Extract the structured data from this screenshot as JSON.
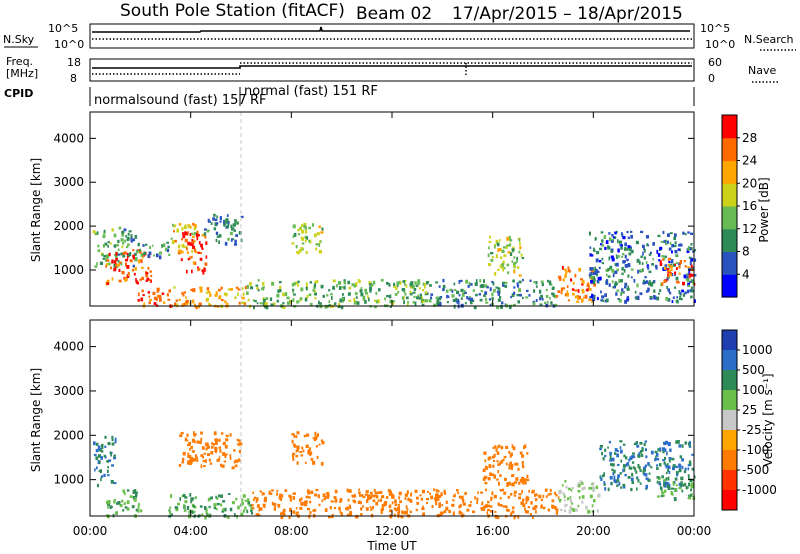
{
  "header": {
    "station": "South Pole Station (fitACF)",
    "beam": "Beam 02",
    "dates": "17/Apr/2015 – 18/Apr/2015"
  },
  "noise_panel": {
    "left_label": "N.Sky",
    "left_ticks": [
      "10^5",
      "10^0"
    ],
    "right_ticks": [
      "10^5",
      "10^0"
    ],
    "right_label": "N.Search"
  },
  "freq_panel": {
    "left_label_1": "Freq.",
    "left_label_2": "[MHz]",
    "left_ticks": [
      "18",
      "8"
    ],
    "right_ticks": [
      "60",
      "0"
    ],
    "right_label": "Nave"
  },
  "cpid": {
    "label": "CPID",
    "seg1": "normalsound (fast) 157",
    "seg1_rf": "RF",
    "seg2": "normal (fast) 151 RF"
  },
  "x_axis": {
    "title": "Time UT",
    "ticks": [
      "00:00",
      "04:00",
      "08:00",
      "12:00",
      "16:00",
      "20:00",
      "00:00"
    ]
  },
  "power_colorbar": {
    "label": "Power [dB]",
    "ticks": [
      "28",
      "24",
      "20",
      "16",
      "12",
      "8",
      "4"
    ],
    "colors": [
      "#0000ff",
      "#2a52be",
      "#2e8b57",
      "#66bb55",
      "#ccd21a",
      "#ffa500",
      "#ff6a00",
      "#ff0000"
    ]
  },
  "velocity_colorbar": {
    "label": "Velocity [m s⁻¹]",
    "ticks": [
      "1000",
      "500",
      "100",
      "25",
      "-25",
      "-100",
      "-500",
      "-1000"
    ],
    "colors": [
      "#1f3fb0",
      "#2a6ec8",
      "#2e8b57",
      "#6ac04a",
      "#c8c8c8",
      "#ffa500",
      "#ff7a00",
      "#ff3300",
      "#ff0000"
    ]
  },
  "chart_data": {
    "type": "heatmap",
    "title": "South Pole Station (fitACF)   Beam 02   17/Apr/2015 – 18/Apr/2015",
    "xlabel": "Time UT",
    "ylabel": "Slant Range [km]",
    "x_range_hours": [
      0,
      24
    ],
    "ylim": [
      180,
      4600
    ],
    "y_ticks": [
      1000,
      2000,
      3000,
      4000
    ],
    "panels": [
      {
        "name": "Power",
        "units": "dB",
        "bands": [
          {
            "t0": 0.1,
            "t1": 1.8,
            "r0": 1100,
            "r1": 2000,
            "value": 12
          },
          {
            "t0": 0.6,
            "t1": 2.4,
            "r0": 700,
            "r1": 1500,
            "value": 27
          },
          {
            "t0": 1.8,
            "t1": 3.2,
            "r0": 1300,
            "r1": 1650,
            "value": 10
          },
          {
            "t0": 1.8,
            "t1": 3.2,
            "r0": 200,
            "r1": 600,
            "value": 27
          },
          {
            "t0": 3.2,
            "t1": 4.2,
            "r0": 1400,
            "r1": 2100,
            "value": 20
          },
          {
            "t0": 3.6,
            "t1": 4.6,
            "r0": 900,
            "r1": 1900,
            "value": 27
          },
          {
            "t0": 3.3,
            "t1": 6.2,
            "r0": 180,
            "r1": 640,
            "value": 23
          },
          {
            "t0": 4.5,
            "t1": 6.0,
            "r0": 1600,
            "r1": 2300,
            "value": 9
          },
          {
            "t0": 6.2,
            "t1": 13.5,
            "r0": 180,
            "r1": 800,
            "value": 13
          },
          {
            "t0": 8.0,
            "t1": 9.2,
            "r0": 1400,
            "r1": 2100,
            "value": 16
          },
          {
            "t0": 13.5,
            "t1": 18.5,
            "r0": 180,
            "r1": 800,
            "value": 10
          },
          {
            "t0": 15.8,
            "t1": 17.2,
            "r0": 900,
            "r1": 1800,
            "value": 16
          },
          {
            "t0": 18.5,
            "t1": 20.0,
            "r0": 300,
            "r1": 1100,
            "value": 25
          },
          {
            "t0": 19.8,
            "t1": 24.0,
            "r0": 300,
            "r1": 1900,
            "value": 8
          },
          {
            "t0": 22.6,
            "t1": 24.0,
            "r0": 700,
            "r1": 1300,
            "value": 27
          }
        ]
      },
      {
        "name": "Velocity",
        "units": "m s⁻¹",
        "bands": [
          {
            "t0": 0.1,
            "t1": 1.0,
            "r0": 900,
            "r1": 2000,
            "value": 500
          },
          {
            "t0": 0.6,
            "t1": 2.0,
            "r0": 200,
            "r1": 800,
            "value": 100
          },
          {
            "t0": 3.5,
            "t1": 6.0,
            "r0": 1300,
            "r1": 2100,
            "value": -300
          },
          {
            "t0": 3.0,
            "t1": 6.4,
            "r0": 180,
            "r1": 700,
            "value": 100
          },
          {
            "t0": 8.0,
            "t1": 9.2,
            "r0": 1400,
            "r1": 2100,
            "value": -300
          },
          {
            "t0": 6.4,
            "t1": 18.6,
            "r0": 180,
            "r1": 800,
            "value": -200
          },
          {
            "t0": 15.6,
            "t1": 17.4,
            "r0": 900,
            "r1": 1800,
            "value": -300
          },
          {
            "t0": 18.6,
            "t1": 20.2,
            "r0": 300,
            "r1": 1000,
            "value": 25
          },
          {
            "t0": 20.2,
            "t1": 24.0,
            "r0": 800,
            "r1": 1900,
            "value": 500
          },
          {
            "t0": 22.5,
            "t1": 24.0,
            "r0": 600,
            "r1": 1100,
            "value": 100
          }
        ]
      }
    ]
  }
}
